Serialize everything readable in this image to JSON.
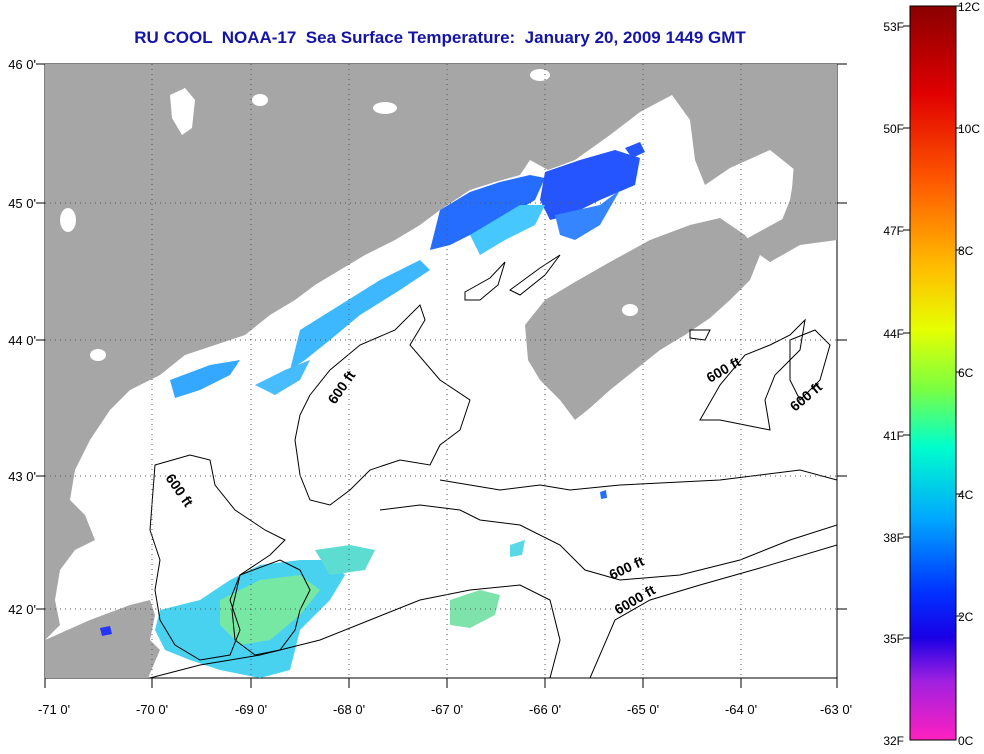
{
  "title": "RU COOL  NOAA-17  Sea Surface Temperature:  January 20, 2009 1449 GMT",
  "map": {
    "lon_ticks": [
      "-71 0'",
      "-70 0'",
      "-69 0'",
      "-68 0'",
      "-67 0'",
      "-66 0'",
      "-65 0'",
      "-64 0'",
      "-63 0'"
    ],
    "lat_ticks": [
      "46 0'",
      "45 0'",
      "44 0'",
      "43 0'",
      "42 0'"
    ],
    "contour_labels": [
      "600 ft",
      "600 ft",
      "600 ft",
      "600 ft",
      "600 ft",
      "6000 ft"
    ],
    "colors": {
      "land": "#a6a6a6",
      "water": "#ffffff",
      "grid": "#555555",
      "contour": "#000000"
    }
  },
  "colorbar": {
    "fahrenheit_labels": [
      "53F",
      "50F",
      "47F",
      "44F",
      "41F",
      "38F",
      "35F",
      "32F"
    ],
    "celsius_labels": [
      "12C",
      "10C",
      "8C",
      "6C",
      "4C",
      "2C",
      "0C"
    ]
  }
}
